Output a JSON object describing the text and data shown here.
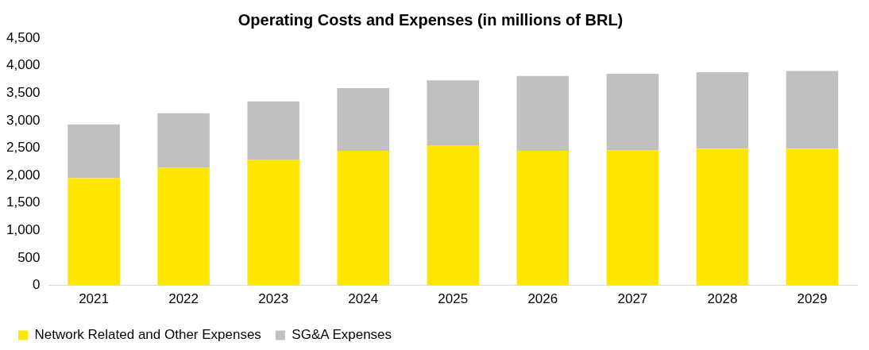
{
  "chart_data": {
    "type": "bar",
    "title": "Operating Costs and Expenses (in millions of BRL)",
    "categories": [
      "2021",
      "2022",
      "2023",
      "2024",
      "2025",
      "2026",
      "2027",
      "2028",
      "2029"
    ],
    "stacked": true,
    "series": [
      {
        "name": "Network Related and Other Expenses",
        "color": "#ffe600",
        "values": [
          1950,
          2140,
          2290,
          2450,
          2550,
          2450,
          2460,
          2490,
          2490
        ]
      },
      {
        "name": "SG&A Expenses",
        "color": "#c0c0c0",
        "values": [
          980,
          990,
          1060,
          1140,
          1180,
          1360,
          1390,
          1390,
          1410
        ]
      }
    ],
    "ylim": [
      0,
      4500
    ],
    "yticks": [
      0,
      500,
      {
        "value": 1000,
        "label": "1,000"
      },
      {
        "value": 1500,
        "label": "1,500"
      },
      {
        "value": 2000,
        "label": "2,000"
      },
      {
        "value": 2500,
        "label": "2,500"
      },
      {
        "value": 3000,
        "label": "3,000"
      },
      {
        "value": 3500,
        "label": "3,500"
      },
      {
        "value": 4000,
        "label": "4,000"
      },
      {
        "value": 4500,
        "label": "4,500"
      }
    ],
    "grid": false,
    "legend": "bottom"
  }
}
